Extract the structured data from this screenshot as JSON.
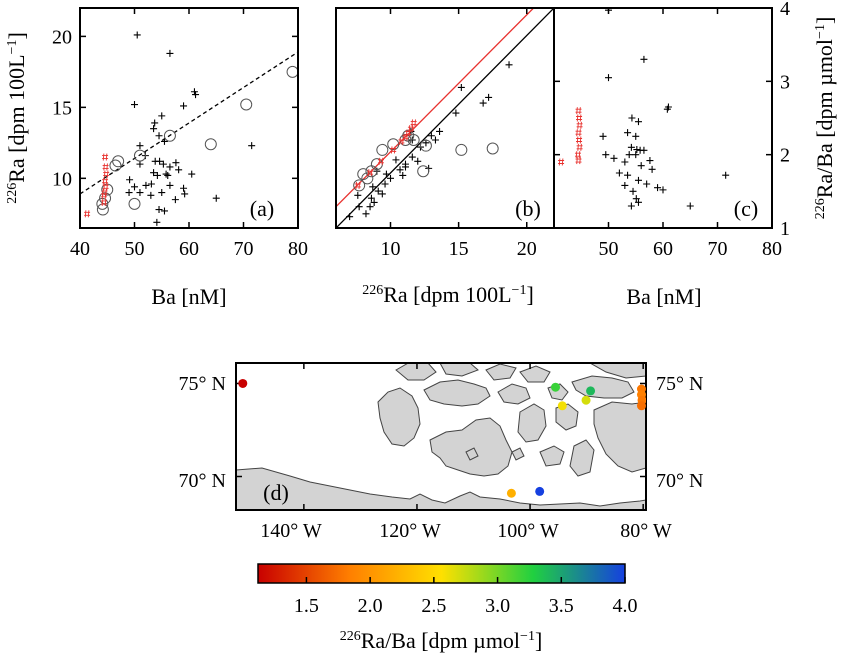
{
  "figure": {
    "panel_a_label": "(a)",
    "panel_b_label": "(b)",
    "panel_c_label": "(c)",
    "panel_d_label": "(d)",
    "a_xlabel": "Ba [nM]",
    "a_ylabel": "226Ra [dpm 100L−1]",
    "b_xlabel": "226Ra [dpm 100L−1]",
    "c_xlabel": "Ba [nM]",
    "c_ylabel": "226Ra/Ba [dpm µmol−1]",
    "colorbar_label": "226Ra/Ba [dpm µmol−1]"
  },
  "chart_data": [
    {
      "panel": "(a)",
      "type": "scatter",
      "xlabel": "Ba [nM]",
      "ylabel": "226Ra [dpm 100L−1]",
      "xlim": [
        40,
        80
      ],
      "ylim": [
        6.5,
        22
      ],
      "xticks": [
        40,
        50,
        60,
        70,
        80
      ],
      "yticks": [
        10,
        15,
        20
      ],
      "fit_line": {
        "style": "dashed",
        "x": [
          40,
          80
        ],
        "y": [
          8.9,
          18.9
        ]
      },
      "series": [
        {
          "marker": "plus",
          "color": "#000000",
          "points": [
            [
              50.5,
              20.1
            ],
            [
              56.5,
              18.8
            ],
            [
              61,
              16.1
            ],
            [
              61.2,
              15.9
            ],
            [
              50,
              15.2
            ],
            [
              59,
              15.1
            ],
            [
              53.5,
              13.5
            ],
            [
              53.7,
              13.9
            ],
            [
              55,
              14.4
            ],
            [
              54.5,
              13.0
            ],
            [
              55.5,
              12.6
            ],
            [
              51,
              12.3
            ],
            [
              52,
              11.6
            ],
            [
              51,
              11.0
            ],
            [
              53.8,
              11.2
            ],
            [
              54.6,
              11.2
            ],
            [
              55.3,
              11.0
            ],
            [
              57.6,
              11.1
            ],
            [
              56.5,
              10.8
            ],
            [
              58.1,
              10.6
            ],
            [
              55.8,
              10.3
            ],
            [
              56.1,
              10.2
            ],
            [
              54.2,
              10.2
            ],
            [
              53.5,
              10.4
            ],
            [
              49.1,
              9.9
            ],
            [
              50,
              9.4
            ],
            [
              52.1,
              9.5
            ],
            [
              53.1,
              9.6
            ],
            [
              49,
              9.0
            ],
            [
              51,
              9.0
            ],
            [
              55,
              9.0
            ],
            [
              59,
              9.3
            ],
            [
              56.5,
              9.5
            ],
            [
              53,
              8.8
            ],
            [
              54.5,
              7.8
            ],
            [
              55.5,
              7.7
            ],
            [
              54.1,
              6.9
            ],
            [
              57.5,
              8.5
            ],
            [
              59.2,
              8.9
            ],
            [
              65,
              8.6
            ],
            [
              71.5,
              12.3
            ],
            [
              60.5,
              10.3
            ]
          ]
        },
        {
          "marker": "circle",
          "color": "#000000",
          "points": [
            [
              79,
              17.5
            ],
            [
              70.5,
              15.2
            ],
            [
              64,
              12.4
            ],
            [
              56.5,
              13.0
            ],
            [
              51,
              11.6
            ],
            [
              47,
              11.2
            ],
            [
              46.5,
              10.9
            ],
            [
              45,
              9.2
            ],
            [
              44.6,
              8.6
            ],
            [
              44.1,
              8.2
            ],
            [
              44.2,
              7.8
            ],
            [
              50,
              8.2
            ]
          ]
        },
        {
          "marker": "hash",
          "color": "#e8322f",
          "points": [
            [
              44.6,
              11.5
            ],
            [
              44.7,
              10.8
            ],
            [
              44.8,
              10.3
            ],
            [
              44.6,
              9.8
            ],
            [
              44.7,
              9.4
            ],
            [
              44.5,
              9.0
            ],
            [
              44.4,
              8.8
            ],
            [
              44.4,
              8.3
            ],
            [
              41.3,
              7.5
            ]
          ]
        }
      ]
    },
    {
      "panel": "(b)",
      "type": "scatter",
      "xlabel": "226Ra [dpm 100L−1]",
      "xlim": [
        6,
        22
      ],
      "ylim": [
        6.5,
        22
      ],
      "xticks": [
        10,
        15,
        20
      ],
      "lines": [
        {
          "color": "#e8322f",
          "x": [
            6,
            20.5
          ],
          "y": [
            8.0,
            22
          ]
        },
        {
          "color": "#000000",
          "x": [
            6,
            22
          ],
          "y": [
            6.5,
            22
          ]
        }
      ],
      "series": [
        {
          "marker": "plus",
          "color": "#000000",
          "points": [
            [
              7,
              7.3
            ],
            [
              7.7,
              8.0
            ],
            [
              8.6,
              8.6
            ],
            [
              9.1,
              9.1
            ],
            [
              9.6,
              9.6
            ],
            [
              10,
              10
            ],
            [
              10.7,
              10.6
            ],
            [
              11.1,
              11.0
            ],
            [
              11.6,
              11.5
            ],
            [
              12.2,
              12.2
            ],
            [
              12.6,
              12.5
            ],
            [
              13,
              13
            ],
            [
              13.6,
              13.3
            ],
            [
              14.8,
              14.6
            ],
            [
              15.2,
              16.4
            ],
            [
              18.7,
              18.0
            ],
            [
              16.8,
              15.3
            ],
            [
              17.2,
              15.7
            ],
            [
              11.5,
              13.3
            ],
            [
              11.6,
              12.7
            ],
            [
              13.3,
              12.7
            ],
            [
              10.9,
              10.2
            ],
            [
              9.7,
              10.3
            ],
            [
              10.4,
              11.3
            ],
            [
              12,
              11.2
            ],
            [
              11.1,
              10.8
            ],
            [
              12.8,
              10.7
            ],
            [
              9.4,
              8.9
            ],
            [
              8.8,
              8.3
            ],
            [
              8.7,
              9.4
            ],
            [
              8.5,
              8.0
            ],
            [
              8.2,
              7.5
            ],
            [
              7.6,
              8.8
            ],
            [
              9.0,
              10.5
            ]
          ]
        },
        {
          "marker": "circle",
          "color": "#000000",
          "points": [
            [
              7.7,
              9.5
            ],
            [
              8,
              10.3
            ],
            [
              8.3,
              10.0
            ],
            [
              8.6,
              10.5
            ],
            [
              9,
              11.0
            ],
            [
              9.4,
              12.0
            ],
            [
              10.2,
              12.4
            ],
            [
              11.1,
              12.7
            ],
            [
              11.3,
              13.0
            ],
            [
              11.7,
              12.7
            ],
            [
              12.4,
              10.5
            ],
            [
              12.6,
              12.3
            ],
            [
              15.2,
              12.0
            ],
            [
              17.5,
              12.1
            ]
          ]
        },
        {
          "marker": "hash",
          "color": "#e8322f",
          "points": [
            [
              7.6,
              9.5
            ],
            [
              8.5,
              10.4
            ],
            [
              9.3,
              11.2
            ],
            [
              10.2,
              12.0
            ],
            [
              10.8,
              12.6
            ],
            [
              11.1,
              12.9
            ],
            [
              11.3,
              13.2
            ],
            [
              11.5,
              13.5
            ],
            [
              11.7,
              13.9
            ]
          ]
        }
      ]
    },
    {
      "panel": "(c)",
      "type": "scatter",
      "xlabel": "Ba [nM]",
      "ylabel": "226Ra/Ba [dpm µmol−1]",
      "xlim": [
        40,
        80
      ],
      "ylim": [
        1,
        4
      ],
      "xticks": [
        50,
        60,
        70,
        80
      ],
      "yticks": [
        1,
        2,
        3,
        4
      ],
      "series": [
        {
          "marker": "plus",
          "color": "#000000",
          "points": [
            [
              50,
              3.97
            ],
            [
              56.5,
              3.3
            ],
            [
              50,
              3.05
            ],
            [
              61,
              2.65
            ],
            [
              60.8,
              2.62
            ],
            [
              54.3,
              2.5
            ],
            [
              55.5,
              2.45
            ],
            [
              53.5,
              2.3
            ],
            [
              55,
              2.25
            ],
            [
              49,
              2.25
            ],
            [
              54.2,
              2.1
            ],
            [
              55.2,
              2.07
            ],
            [
              55.8,
              2.06
            ],
            [
              56.5,
              2.06
            ],
            [
              53.8,
              2.0
            ],
            [
              55,
              2.0
            ],
            [
              49.5,
              2.0
            ],
            [
              51,
              1.95
            ],
            [
              53,
              1.9
            ],
            [
              57.6,
              1.92
            ],
            [
              56,
              1.85
            ],
            [
              58,
              1.8
            ],
            [
              52,
              1.75
            ],
            [
              53.5,
              1.72
            ],
            [
              55.5,
              1.65
            ],
            [
              57,
              1.6
            ],
            [
              59,
              1.55
            ],
            [
              60,
              1.52
            ],
            [
              53,
              1.58
            ],
            [
              54.5,
              1.5
            ],
            [
              55.1,
              1.4
            ],
            [
              54.2,
              1.3
            ],
            [
              55.5,
              1.35
            ],
            [
              65,
              1.3
            ],
            [
              71.5,
              1.72
            ]
          ]
        },
        {
          "marker": "hash",
          "color": "#e8322f",
          "points": [
            [
              44.5,
              2.6
            ],
            [
              44.6,
              2.5
            ],
            [
              44.7,
              2.4
            ],
            [
              44.5,
              2.3
            ],
            [
              44.6,
              2.2
            ],
            [
              44.7,
              2.1
            ],
            [
              44.4,
              2.0
            ],
            [
              44.5,
              1.92
            ],
            [
              41.3,
              1.9
            ]
          ]
        }
      ]
    }
  ],
  "map": {
    "lat_labels": [
      "75° N",
      "70° N"
    ],
    "lon_labels": [
      "140° W",
      "120° W",
      "100° W",
      "80° W"
    ],
    "stations": [
      {
        "lon": -150.8,
        "lat": 75.0,
        "ratio": 1.12
      },
      {
        "lon": -103.3,
        "lat": 69.1,
        "ratio": 2.2
      },
      {
        "lon": -98.3,
        "lat": 69.2,
        "ratio": 4.0
      },
      {
        "lon": -95.5,
        "lat": 74.8,
        "ratio": 3.2
      },
      {
        "lon": -94.3,
        "lat": 73.8,
        "ratio": 2.6
      },
      {
        "lon": -89.3,
        "lat": 74.6,
        "ratio": 3.4
      },
      {
        "lon": -90.1,
        "lat": 74.1,
        "ratio": 2.7
      },
      {
        "lon": -80.3,
        "lat": 74.7,
        "ratio": 1.8
      },
      {
        "lon": -80.3,
        "lat": 74.4,
        "ratio": 1.85
      },
      {
        "lon": -80.2,
        "lat": 74.1,
        "ratio": 1.8
      },
      {
        "lon": -80.3,
        "lat": 73.8,
        "ratio": 1.75
      }
    ],
    "colorbar": {
      "min": 1.12,
      "max": 4.0,
      "ticks": [
        "1.5",
        "2.0",
        "2.5",
        "3.0",
        "3.5",
        "4.0"
      ],
      "colors": [
        "#c80000",
        "#ff7f00",
        "#ffe000",
        "#20d040",
        "#1540e0"
      ]
    }
  }
}
